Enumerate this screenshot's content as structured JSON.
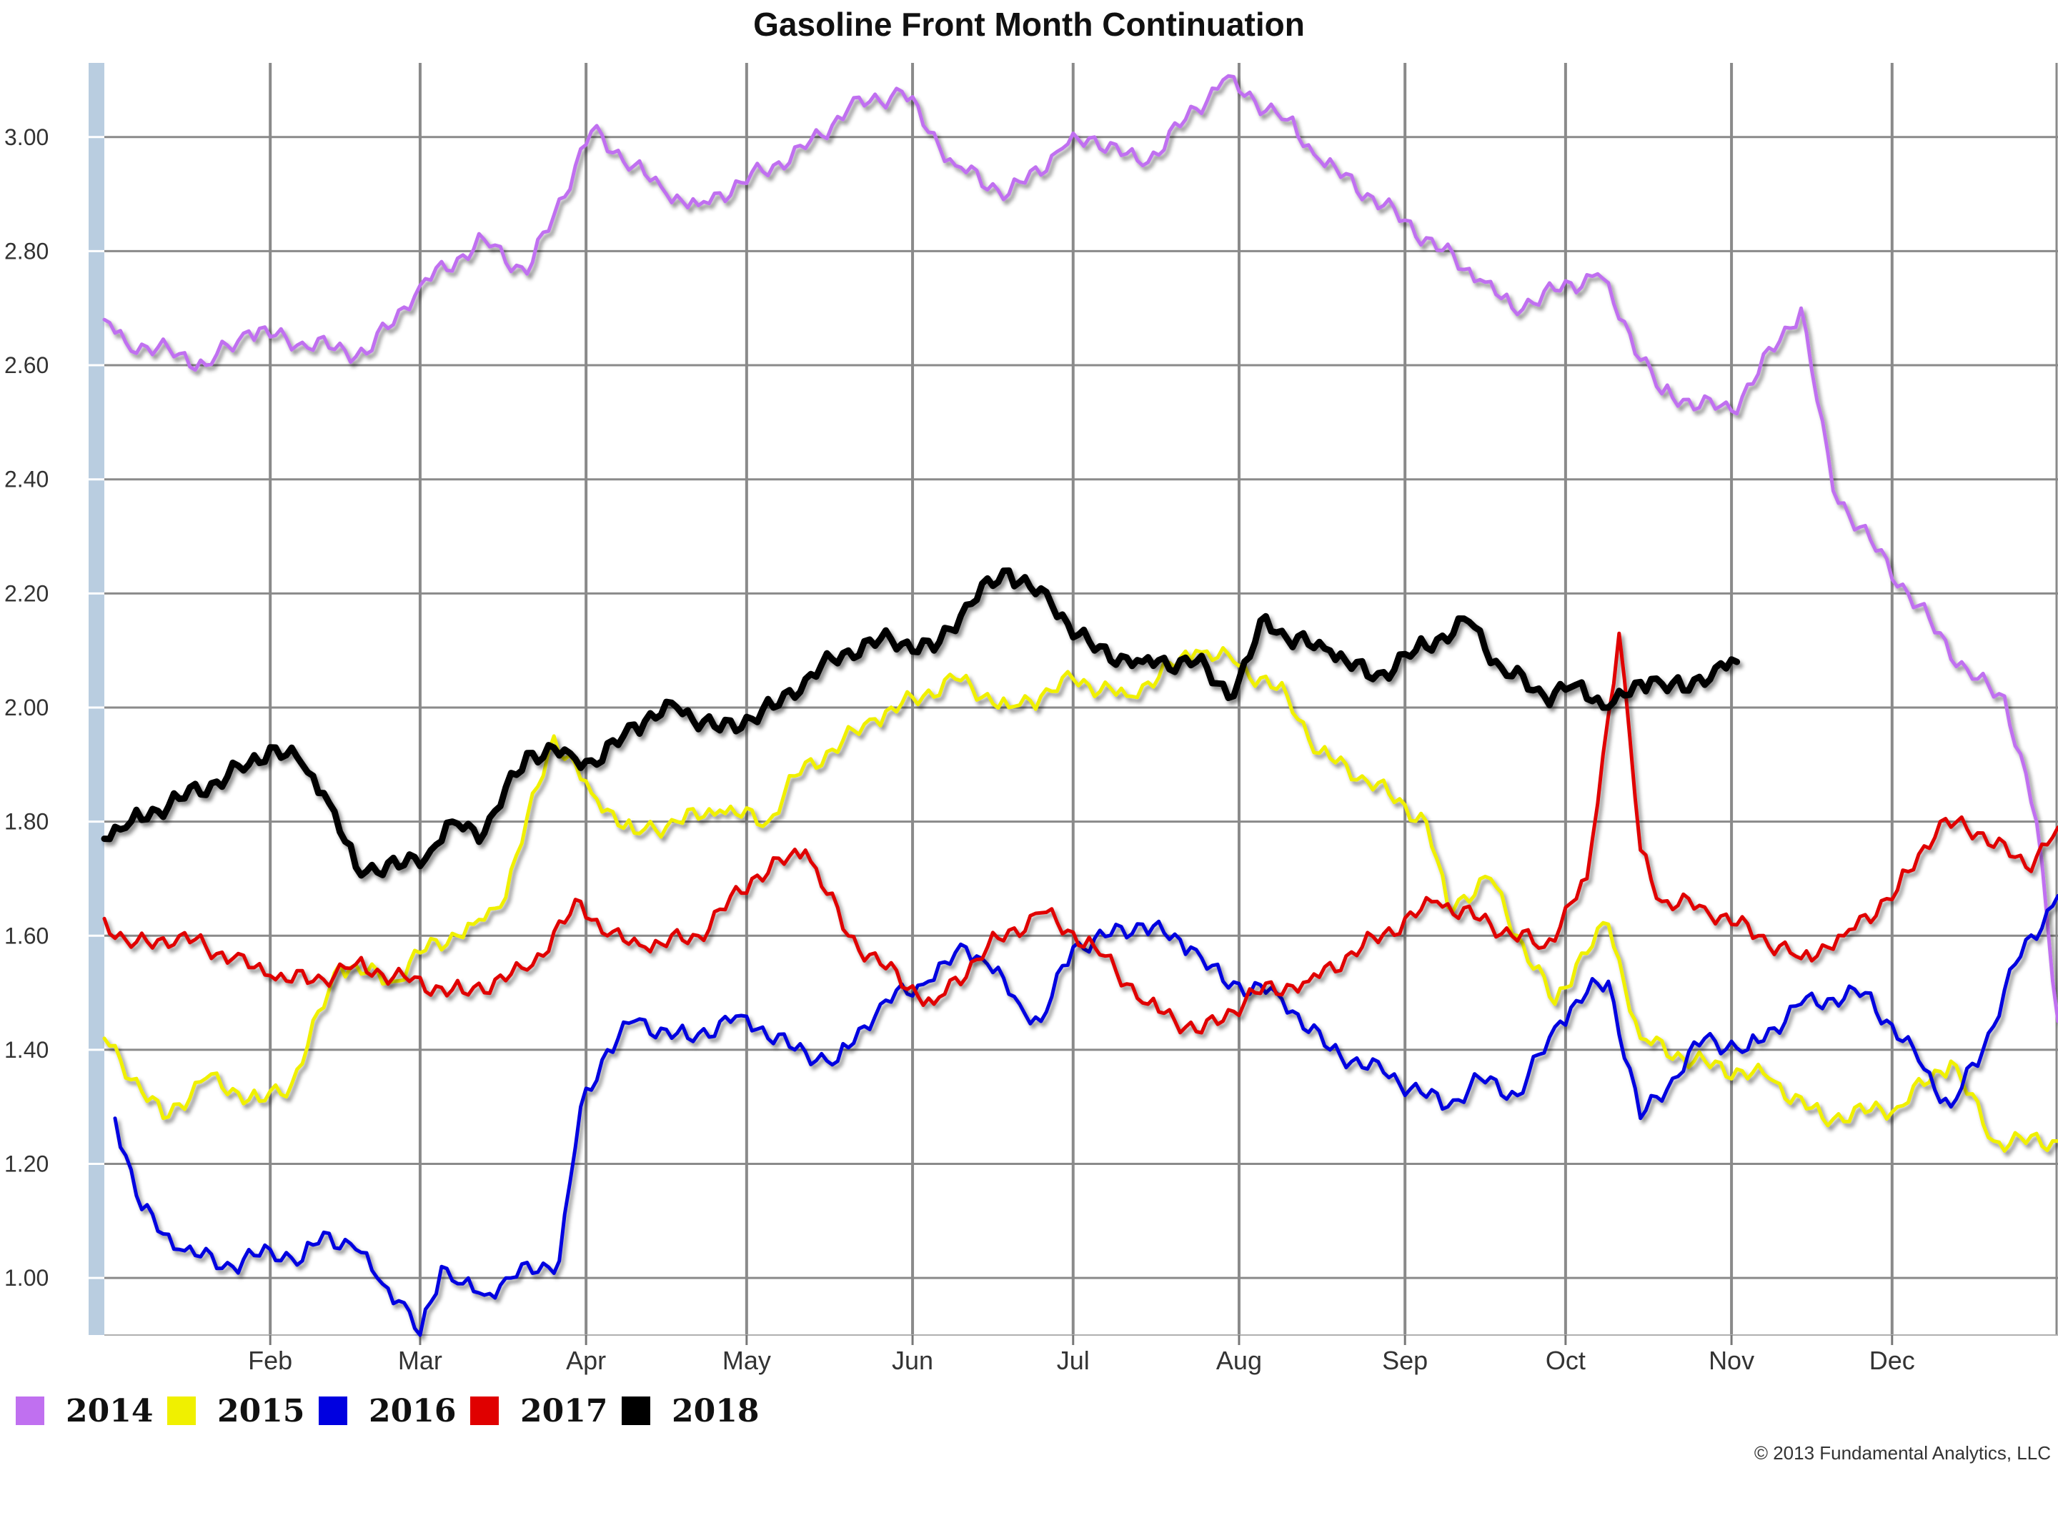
{
  "chart_data": {
    "type": "line",
    "title": "Gasoline Front Month Continuation",
    "xlabel": "",
    "ylabel": "",
    "x_ticks": [
      "Feb",
      "Mar",
      "Apr",
      "May",
      "Jun",
      "Jul",
      "Aug",
      "Sep",
      "Oct",
      "Nov",
      "Dec"
    ],
    "y_ticks": [
      "1.00",
      "1.20",
      "1.40",
      "1.60",
      "1.80",
      "2.00",
      "2.20",
      "2.40",
      "2.60",
      "2.80",
      "3.00"
    ],
    "xlim": [
      1,
      366
    ],
    "ylim": [
      0.9,
      3.13
    ],
    "grid": true,
    "legend_position": "bottom-left",
    "credit": "© 2013 Fundamental Analytics, LLC",
    "series": [
      {
        "name": "2014",
        "color": "#c070f0",
        "x": [
          1,
          5,
          15,
          20,
          28,
          38,
          50,
          60,
          72,
          80,
          92,
          100,
          106,
          112,
          120,
          132,
          140,
          150,
          160,
          170,
          180,
          186,
          195,
          210,
          222,
          228,
          240,
          258,
          264,
          280,
          292,
          305,
          318,
          324,
          338,
          350,
          356,
          362,
          366
        ],
        "y": [
          2.68,
          2.64,
          2.62,
          2.6,
          2.66,
          2.64,
          2.62,
          2.74,
          2.82,
          2.76,
          3.01,
          2.95,
          2.9,
          2.88,
          2.92,
          2.98,
          3.05,
          3.08,
          2.95,
          2.9,
          2.98,
          3.0,
          2.95,
          3.1,
          3.03,
          2.96,
          2.88,
          2.75,
          2.7,
          2.76,
          2.55,
          2.52,
          2.7,
          2.38,
          2.2,
          2.05,
          2.02,
          1.8,
          1.45
        ]
      },
      {
        "name": "2015",
        "color": "#f0f000",
        "x": [
          1,
          12,
          20,
          30,
          36,
          45,
          55,
          60,
          70,
          75,
          85,
          92,
          100,
          108,
          116,
          125,
          130,
          145,
          160,
          170,
          176,
          182,
          192,
          205,
          212,
          222,
          228,
          236,
          248,
          252,
          260,
          265,
          272,
          276,
          282,
          288,
          298,
          312,
          322,
          336,
          346,
          354,
          366
        ],
        "y": [
          1.42,
          1.28,
          1.35,
          1.31,
          1.34,
          1.55,
          1.52,
          1.57,
          1.62,
          1.65,
          1.95,
          1.85,
          1.78,
          1.8,
          1.82,
          1.8,
          1.88,
          1.98,
          2.05,
          2.0,
          2.02,
          2.05,
          2.02,
          2.1,
          2.08,
          2.02,
          1.92,
          1.88,
          1.8,
          1.65,
          1.7,
          1.6,
          1.48,
          1.55,
          1.62,
          1.42,
          1.38,
          1.35,
          1.28,
          1.3,
          1.38,
          1.24,
          1.24
        ]
      },
      {
        "name": "2016",
        "color": "#0000e0",
        "x": [
          3,
          8,
          15,
          25,
          32,
          38,
          42,
          48,
          52,
          56,
          60,
          64,
          68,
          72,
          76,
          86,
          90,
          95,
          100,
          110,
          120,
          130,
          138,
          146,
          155,
          162,
          166,
          172,
          176,
          182,
          195,
          204,
          210,
          220,
          230,
          240,
          252,
          258,
          265,
          273,
          278,
          282,
          288,
          294,
          300,
          308,
          318,
          330,
          340,
          346,
          352,
          358,
          366
        ],
        "y": [
          1.28,
          1.12,
          1.05,
          1.02,
          1.05,
          1.03,
          1.08,
          1.05,
          1.0,
          0.96,
          0.9,
          1.02,
          0.99,
          0.97,
          1.0,
          1.03,
          1.3,
          1.4,
          1.45,
          1.42,
          1.46,
          1.4,
          1.38,
          1.48,
          1.52,
          1.58,
          1.55,
          1.48,
          1.45,
          1.58,
          1.62,
          1.58,
          1.52,
          1.5,
          1.4,
          1.36,
          1.3,
          1.35,
          1.32,
          1.45,
          1.5,
          1.52,
          1.28,
          1.35,
          1.42,
          1.4,
          1.48,
          1.5,
          1.38,
          1.3,
          1.4,
          1.55,
          1.67
        ]
      },
      {
        "name": "2017",
        "color": "#e00000",
        "x": [
          1,
          6,
          15,
          25,
          32,
          40,
          48,
          58,
          68,
          80,
          90,
          95,
          102,
          112,
          122,
          132,
          140,
          146,
          156,
          166,
          176,
          186,
          196,
          206,
          216,
          226,
          236,
          250,
          260,
          270,
          278,
          284,
          288,
          292,
          300,
          310,
          318,
          326,
          336,
          344,
          352,
          360,
          366
        ],
        "y": [
          1.63,
          1.58,
          1.6,
          1.56,
          1.53,
          1.52,
          1.55,
          1.52,
          1.5,
          1.54,
          1.66,
          1.6,
          1.58,
          1.6,
          1.7,
          1.75,
          1.6,
          1.55,
          1.48,
          1.58,
          1.64,
          1.58,
          1.48,
          1.43,
          1.5,
          1.52,
          1.58,
          1.66,
          1.62,
          1.58,
          1.7,
          2.13,
          1.75,
          1.66,
          1.65,
          1.6,
          1.56,
          1.6,
          1.68,
          1.8,
          1.78,
          1.72,
          1.79
        ]
      },
      {
        "name": "2018",
        "color": "#000000",
        "x": [
          1,
          6,
          15,
          22,
          28,
          32,
          38,
          42,
          48,
          56,
          62,
          66,
          72,
          80,
          88,
          93,
          100,
          108,
          116,
          126,
          132,
          140,
          148,
          156,
          162,
          170,
          178,
          186,
          195,
          205,
          212,
          218,
          222,
          230,
          238,
          246,
          256,
          262,
          270,
          276,
          282,
          290,
          296,
          302,
          306
        ],
        "y": [
          1.77,
          1.8,
          1.84,
          1.87,
          1.9,
          1.93,
          1.9,
          1.85,
          1.72,
          1.72,
          1.75,
          1.8,
          1.78,
          1.92,
          1.92,
          1.9,
          1.97,
          2.0,
          1.96,
          2.0,
          2.05,
          2.1,
          2.12,
          2.1,
          2.18,
          2.24,
          2.18,
          2.1,
          2.08,
          2.08,
          2.02,
          2.16,
          2.12,
          2.1,
          2.05,
          2.1,
          2.15,
          2.07,
          2.02,
          2.04,
          2.0,
          2.05,
          2.03,
          2.07,
          2.08
        ]
      }
    ]
  }
}
